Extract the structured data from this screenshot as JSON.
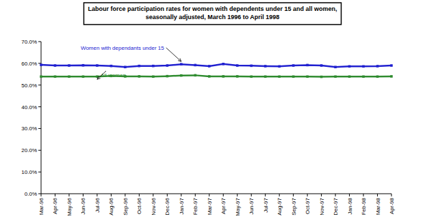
{
  "chart_data": {
    "type": "line",
    "title": "Labour force participation rates for women with dependents under 15 and all women, seasonally adjusted, March 1996 to April 1998",
    "categories": [
      "Mar-96",
      "Apr-96",
      "May-96",
      "Jun-96",
      "Jul-96",
      "Aug-96",
      "Sep-96",
      "Oct-96",
      "Nov-96",
      "Dec-96",
      "Jan-97",
      "Feb-97",
      "Mar-97",
      "Apr-97",
      "May-97",
      "Jun-97",
      "Jul-97",
      "Aug-97",
      "Sep-97",
      "Oct-97",
      "Nov-97",
      "Dec-97",
      "Jan-98",
      "Feb-98",
      "Mar-98",
      "Apr-98"
    ],
    "series": [
      {
        "name": "Women with dependants under 15",
        "color": "#2020d0",
        "marker": "square",
        "values": [
          59.3,
          59.0,
          59.0,
          59.1,
          59.0,
          58.8,
          58.3,
          58.8,
          58.8,
          59.0,
          59.6,
          59.2,
          58.7,
          59.7,
          59.0,
          58.9,
          58.7,
          58.6,
          59.0,
          59.2,
          59.0,
          58.3,
          58.6,
          58.6,
          58.7,
          59.0
        ]
      },
      {
        "name": "All women",
        "color": "#2e8b2e",
        "marker": "square",
        "values": [
          53.9,
          53.9,
          53.9,
          53.9,
          53.9,
          54.2,
          54.0,
          54.0,
          53.9,
          54.1,
          54.4,
          54.5,
          54.0,
          54.0,
          54.0,
          53.9,
          53.9,
          53.9,
          53.9,
          53.9,
          53.8,
          53.9,
          53.9,
          53.9,
          53.9,
          54.0
        ]
      }
    ],
    "ylim": [
      0,
      70
    ],
    "yticks": [
      {
        "value": 0,
        "label": "0.0%"
      },
      {
        "value": 10,
        "label": "10.0%"
      },
      {
        "value": 20,
        "label": "20.0%"
      },
      {
        "value": 30,
        "label": "30.0%"
      },
      {
        "value": 40,
        "label": "40.0%"
      },
      {
        "value": 50,
        "label": "50.0%"
      },
      {
        "value": 60,
        "label": "60.0%"
      },
      {
        "value": 70,
        "label": "70.0%"
      }
    ],
    "grid": false
  }
}
